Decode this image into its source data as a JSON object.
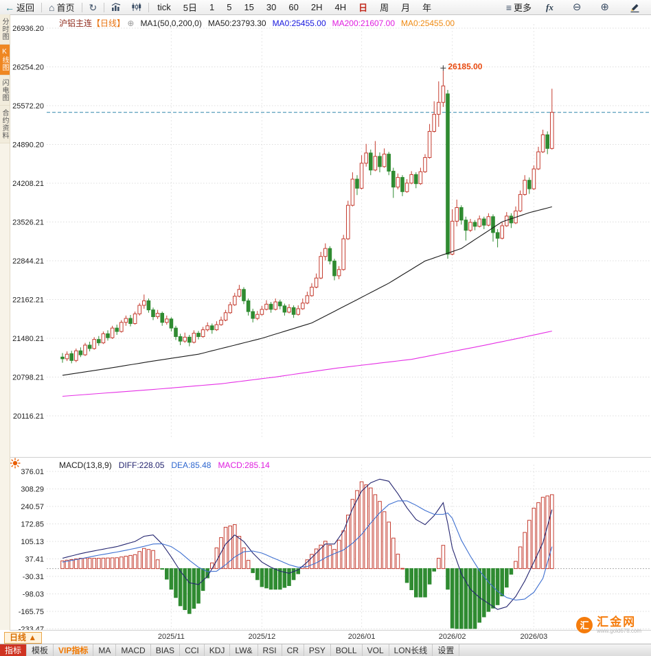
{
  "toolbar": {
    "back": "返回",
    "home": "首页",
    "more_label": "更多",
    "fx_label": "fx",
    "active_period": "日",
    "periods": [
      "tick",
      "5日",
      "1",
      "5",
      "15",
      "30",
      "60",
      "2H",
      "4H",
      "日",
      "周",
      "月",
      "年"
    ]
  },
  "left_rail": {
    "tabs": [
      {
        "label": "分时图",
        "active": false
      },
      {
        "label": "K线图",
        "active": true
      },
      {
        "label": "闪电图",
        "active": false
      },
      {
        "label": "合约资料",
        "active": false
      }
    ]
  },
  "chart_header": {
    "symbol": "沪铝主连",
    "period_tag": "【日线】",
    "add_icon": "⊕",
    "ma_settings": "MA1(50,0,200,0)",
    "ma50_label": "MA50:23793.30",
    "ma0_blue": "MA0:25455.00",
    "ma200_label": "MA200:21607.00",
    "ma0_orange": "MA0:25455.00"
  },
  "macd_header": {
    "title": "MACD(13,8,9)",
    "diff": "DIFF:228.05",
    "dea": "DEA:85.48",
    "macd": "MACD:285.14"
  },
  "bottom": {
    "period_selector": "日线 ▲",
    "tabs": [
      {
        "label": "指标",
        "style": "primary"
      },
      {
        "label": "模板",
        "style": ""
      },
      {
        "label": "VIP指标",
        "style": "vip"
      },
      {
        "label": "MA",
        "style": ""
      },
      {
        "label": "MACD",
        "style": ""
      },
      {
        "label": "BIAS",
        "style": ""
      },
      {
        "label": "CCI",
        "style": ""
      },
      {
        "label": "KDJ",
        "style": ""
      },
      {
        "label": "LW&",
        "style": ""
      },
      {
        "label": "RSI",
        "style": ""
      },
      {
        "label": "CR",
        "style": ""
      },
      {
        "label": "PSY",
        "style": ""
      },
      {
        "label": "BOLL",
        "style": ""
      },
      {
        "label": "VOL",
        "style": ""
      },
      {
        "label": "LON长线",
        "style": ""
      },
      {
        "label": "设置",
        "style": ""
      }
    ]
  },
  "watermark": {
    "logo_char": "汇",
    "name": "汇金网",
    "url": "www.gold678.com"
  },
  "chart_data": {
    "type": "candlestick",
    "title": "沪铝主连 日线",
    "last_price": 25455.0,
    "y_ticks_main": [
      "26936.20",
      "26254.20",
      "25572.20",
      "24890.20",
      "24208.21",
      "23526.21",
      "22844.21",
      "22162.21",
      "21480.21",
      "20798.21",
      "20116.21"
    ],
    "y_ticks_macd": [
      "376.01",
      "308.29",
      "240.57",
      "172.85",
      "105.13",
      "37.41",
      "-30.31",
      "-98.03",
      "-165.75",
      "-233.47"
    ],
    "x_labels": [
      {
        "label": "2025/11",
        "i": 24
      },
      {
        "label": "2025/12",
        "i": 44
      },
      {
        "label": "2026/01",
        "i": 66
      },
      {
        "label": "2026/02",
        "i": 86
      },
      {
        "label": "2026/03",
        "i": 104
      }
    ],
    "high_marker": {
      "i": 84,
      "price": 26185.0,
      "label": "26185.00"
    },
    "colors": {
      "up": "#c43b2e",
      "down": "#2f8b31",
      "ma50": "#1a1a1a",
      "ma200": "#e52ee5",
      "diff": "#23246f",
      "dea": "#3d6fd0",
      "last_price_line": "#2e86ab",
      "high_label": "#e8490f"
    },
    "candles": [
      [
        21150,
        21220,
        21050,
        21120
      ],
      [
        21120,
        21250,
        21080,
        21200
      ],
      [
        21210,
        21260,
        21040,
        21090
      ],
      [
        21090,
        21300,
        21060,
        21260
      ],
      [
        21260,
        21320,
        21150,
        21190
      ],
      [
        21190,
        21400,
        21170,
        21360
      ],
      [
        21360,
        21420,
        21250,
        21300
      ],
      [
        21300,
        21500,
        21280,
        21460
      ],
      [
        21460,
        21520,
        21350,
        21400
      ],
      [
        21400,
        21600,
        21380,
        21560
      ],
      [
        21560,
        21620,
        21440,
        21490
      ],
      [
        21490,
        21700,
        21470,
        21660
      ],
      [
        21660,
        21720,
        21540,
        21600
      ],
      [
        21600,
        21800,
        21580,
        21760
      ],
      [
        21760,
        21880,
        21700,
        21830
      ],
      [
        21830,
        21890,
        21690,
        21740
      ],
      [
        21740,
        21950,
        21720,
        21910
      ],
      [
        21910,
        22100,
        21880,
        22060
      ],
      [
        22060,
        22250,
        22000,
        22140
      ],
      [
        22140,
        22180,
        21930,
        21980
      ],
      [
        21980,
        22020,
        21800,
        21860
      ],
      [
        21860,
        21980,
        21820,
        21920
      ],
      [
        21920,
        21950,
        21700,
        21760
      ],
      [
        21760,
        21880,
        21720,
        21820
      ],
      [
        21820,
        21850,
        21600,
        21660
      ],
      [
        21660,
        21700,
        21450,
        21510
      ],
      [
        21510,
        21560,
        21360,
        21430
      ],
      [
        21430,
        21580,
        21400,
        21500
      ],
      [
        21500,
        21540,
        21340,
        21410
      ],
      [
        21410,
        21620,
        21390,
        21570
      ],
      [
        21570,
        21610,
        21460,
        21510
      ],
      [
        21510,
        21680,
        21490,
        21630
      ],
      [
        21630,
        21760,
        21600,
        21700
      ],
      [
        21700,
        21740,
        21560,
        21630
      ],
      [
        21630,
        21780,
        21610,
        21720
      ],
      [
        21720,
        21860,
        21700,
        21800
      ],
      [
        21800,
        21980,
        21780,
        21930
      ],
      [
        21930,
        22120,
        21910,
        22070
      ],
      [
        22070,
        22280,
        22050,
        22220
      ],
      [
        22220,
        22420,
        22200,
        22340
      ],
      [
        22340,
        22380,
        22080,
        22140
      ],
      [
        22140,
        22180,
        21880,
        21950
      ],
      [
        21950,
        22000,
        21760,
        21830
      ],
      [
        21830,
        21960,
        21800,
        21900
      ],
      [
        21900,
        22050,
        21880,
        21990
      ],
      [
        21990,
        22150,
        21970,
        22080
      ],
      [
        22080,
        22120,
        21930,
        21990
      ],
      [
        21990,
        22180,
        21970,
        22120
      ],
      [
        22120,
        22160,
        21990,
        22050
      ],
      [
        22050,
        22090,
        21880,
        21940
      ],
      [
        21940,
        22080,
        21920,
        22020
      ],
      [
        22020,
        22060,
        21840,
        21900
      ],
      [
        21900,
        22060,
        21880,
        22000
      ],
      [
        22000,
        22180,
        21980,
        22100
      ],
      [
        22100,
        22300,
        22080,
        22230
      ],
      [
        22230,
        22450,
        22210,
        22380
      ],
      [
        22380,
        22620,
        22360,
        22540
      ],
      [
        22540,
        23000,
        22520,
        22920
      ],
      [
        22920,
        23150,
        22850,
        23060
      ],
      [
        23060,
        23100,
        22780,
        22840
      ],
      [
        22840,
        22880,
        22500,
        22580
      ],
      [
        22580,
        22750,
        22520,
        22690
      ],
      [
        22690,
        23300,
        22670,
        23230
      ],
      [
        23230,
        23900,
        23210,
        23820
      ],
      [
        23820,
        24400,
        23800,
        24280
      ],
      [
        24280,
        24350,
        24000,
        24120
      ],
      [
        24120,
        24700,
        24100,
        24560
      ],
      [
        24560,
        24900,
        24500,
        24740
      ],
      [
        24740,
        24800,
        24350,
        24440
      ],
      [
        24440,
        24950,
        24420,
        24680
      ],
      [
        24680,
        24750,
        24400,
        24500
      ],
      [
        24500,
        24820,
        24480,
        24720
      ],
      [
        24720,
        24760,
        24350,
        24420
      ],
      [
        24420,
        24480,
        23950,
        24140
      ],
      [
        24140,
        24380,
        24100,
        24310
      ],
      [
        24310,
        24350,
        23980,
        24060
      ],
      [
        24060,
        24280,
        24040,
        24210
      ],
      [
        24210,
        24420,
        24190,
        24360
      ],
      [
        24360,
        24400,
        24120,
        24200
      ],
      [
        24200,
        24480,
        24180,
        24410
      ],
      [
        24410,
        24720,
        24390,
        24660
      ],
      [
        24660,
        25250,
        24640,
        25120
      ],
      [
        25120,
        25650,
        25100,
        25420
      ],
      [
        25420,
        26000,
        25200,
        25630
      ],
      [
        25630,
        26185,
        25550,
        25920
      ],
      [
        25780,
        25850,
        22880,
        22960
      ],
      [
        22960,
        23750,
        22940,
        23540
      ],
      [
        23540,
        23920,
        23450,
        23780
      ],
      [
        23780,
        23820,
        23480,
        23560
      ],
      [
        23560,
        23620,
        23200,
        23380
      ],
      [
        23380,
        23580,
        23350,
        23520
      ],
      [
        23520,
        23560,
        23380,
        23450
      ],
      [
        23450,
        23640,
        23430,
        23580
      ],
      [
        23580,
        23620,
        23400,
        23470
      ],
      [
        23470,
        23680,
        23450,
        23620
      ],
      [
        23620,
        23660,
        23180,
        23340
      ],
      [
        23340,
        23400,
        23080,
        23240
      ],
      [
        23240,
        23520,
        23220,
        23460
      ],
      [
        23460,
        23700,
        23440,
        23630
      ],
      [
        23630,
        23680,
        23420,
        23510
      ],
      [
        23510,
        23800,
        23490,
        23720
      ],
      [
        23720,
        24080,
        23700,
        24010
      ],
      [
        24010,
        24350,
        23990,
        24260
      ],
      [
        24260,
        24310,
        24020,
        24110
      ],
      [
        24110,
        24520,
        24090,
        24460
      ],
      [
        24460,
        24850,
        24440,
        24760
      ],
      [
        24760,
        25150,
        24740,
        25060
      ],
      [
        25060,
        25120,
        24720,
        24820
      ],
      [
        24820,
        25870,
        24800,
        25455
      ]
    ],
    "ma50_points": [
      [
        0,
        20830
      ],
      [
        10,
        20950
      ],
      [
        20,
        21080
      ],
      [
        30,
        21200
      ],
      [
        44,
        21480
      ],
      [
        55,
        21750
      ],
      [
        65,
        22160
      ],
      [
        72,
        22450
      ],
      [
        80,
        22840
      ],
      [
        88,
        23060
      ],
      [
        97,
        23530
      ],
      [
        103,
        23690
      ],
      [
        108,
        23793
      ]
    ],
    "ma200_points": [
      [
        0,
        20460
      ],
      [
        20,
        20580
      ],
      [
        35,
        20680
      ],
      [
        47,
        20800
      ],
      [
        60,
        20950
      ],
      [
        77,
        21110
      ],
      [
        92,
        21340
      ],
      [
        100,
        21470
      ],
      [
        108,
        21607
      ]
    ],
    "macd": {
      "params": "13,8,9",
      "diff_last": 228.05,
      "dea_last": 85.48,
      "hist_last": 285.14,
      "diff_points": [
        [
          0,
          40
        ],
        [
          4,
          58
        ],
        [
          8,
          72
        ],
        [
          12,
          85
        ],
        [
          16,
          105
        ],
        [
          18,
          125
        ],
        [
          20,
          130
        ],
        [
          22,
          95
        ],
        [
          24,
          45
        ],
        [
          26,
          -10
        ],
        [
          28,
          -55
        ],
        [
          30,
          -62
        ],
        [
          32,
          -30
        ],
        [
          34,
          30
        ],
        [
          36,
          95
        ],
        [
          38,
          130
        ],
        [
          40,
          105
        ],
        [
          42,
          60
        ],
        [
          44,
          25
        ],
        [
          46,
          5
        ],
        [
          48,
          -10
        ],
        [
          50,
          -18
        ],
        [
          52,
          -5
        ],
        [
          54,
          25
        ],
        [
          56,
          60
        ],
        [
          58,
          95
        ],
        [
          60,
          95
        ],
        [
          62,
          145
        ],
        [
          64,
          232
        ],
        [
          66,
          300
        ],
        [
          68,
          332
        ],
        [
          70,
          346
        ],
        [
          72,
          338
        ],
        [
          74,
          290
        ],
        [
          76,
          235
        ],
        [
          78,
          190
        ],
        [
          80,
          170
        ],
        [
          82,
          205
        ],
        [
          84,
          255
        ],
        [
          85,
          175
        ],
        [
          86,
          80
        ],
        [
          88,
          -20
        ],
        [
          90,
          -80
        ],
        [
          92,
          -112
        ],
        [
          94,
          -135
        ],
        [
          96,
          -158
        ],
        [
          98,
          -148
        ],
        [
          100,
          -108
        ],
        [
          102,
          -48
        ],
        [
          104,
          25
        ],
        [
          106,
          100
        ],
        [
          108,
          228
        ]
      ],
      "dea_points": [
        [
          0,
          25
        ],
        [
          4,
          38
        ],
        [
          8,
          52
        ],
        [
          12,
          64
        ],
        [
          16,
          78
        ],
        [
          18,
          86
        ],
        [
          20,
          95
        ],
        [
          22,
          96
        ],
        [
          24,
          85
        ],
        [
          26,
          62
        ],
        [
          28,
          32
        ],
        [
          30,
          5
        ],
        [
          32,
          -12
        ],
        [
          34,
          -10
        ],
        [
          36,
          15
        ],
        [
          38,
          45
        ],
        [
          40,
          65
        ],
        [
          42,
          68
        ],
        [
          44,
          60
        ],
        [
          46,
          45
        ],
        [
          48,
          30
        ],
        [
          50,
          15
        ],
        [
          52,
          5
        ],
        [
          54,
          8
        ],
        [
          56,
          22
        ],
        [
          58,
          42
        ],
        [
          60,
          58
        ],
        [
          62,
          72
        ],
        [
          64,
          98
        ],
        [
          66,
          132
        ],
        [
          68,
          176
        ],
        [
          70,
          216
        ],
        [
          72,
          248
        ],
        [
          74,
          262
        ],
        [
          76,
          262
        ],
        [
          78,
          245
        ],
        [
          80,
          225
        ],
        [
          82,
          210
        ],
        [
          84,
          210
        ],
        [
          85,
          215
        ],
        [
          86,
          195
        ],
        [
          88,
          110
        ],
        [
          90,
          48
        ],
        [
          92,
          -8
        ],
        [
          94,
          -52
        ],
        [
          96,
          -88
        ],
        [
          98,
          -112
        ],
        [
          100,
          -122
        ],
        [
          102,
          -118
        ],
        [
          104,
          -92
        ],
        [
          106,
          -38
        ],
        [
          108,
          85
        ]
      ]
    }
  }
}
